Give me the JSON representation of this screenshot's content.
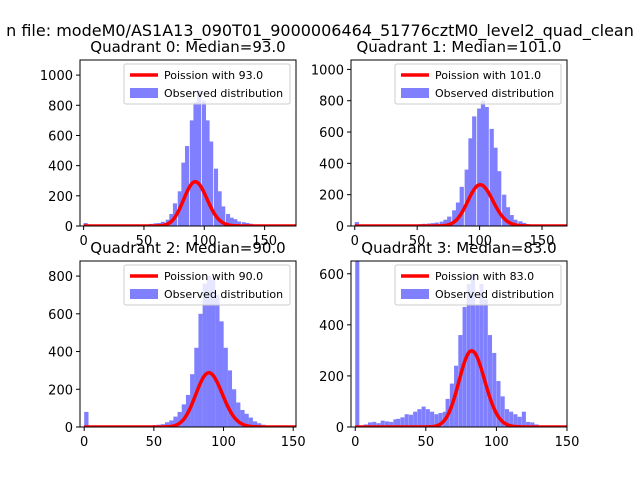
{
  "figure": {
    "suptitle": "n file: modeM0/AS1A13_090T01_9000006464_51776cztM0_level2_quad_clean"
  },
  "colors": {
    "poisson": "#ff0000",
    "observed": "#8080ff",
    "legend_edge": "#cccccc"
  },
  "chart_data": [
    {
      "type": "bar",
      "title": "Quadrant 0: Median=93.0",
      "xlim": [
        -3,
        176
      ],
      "ylim": [
        0,
        1100
      ],
      "xticks": [
        0,
        50,
        100,
        150
      ],
      "yticks": [
        0,
        200,
        400,
        600,
        800,
        1000
      ],
      "legend": [
        "Poission with 93.0",
        "Observed distribution"
      ],
      "legend_position": "top-right",
      "bin_width": 3.4,
      "poisson_mean": 93,
      "observed": [
        [
          0,
          20
        ],
        [
          51,
          8
        ],
        [
          54,
          14
        ],
        [
          58,
          18
        ],
        [
          61,
          20
        ],
        [
          64,
          28
        ],
        [
          68,
          42
        ],
        [
          71,
          80
        ],
        [
          74,
          150
        ],
        [
          78,
          230
        ],
        [
          81,
          420
        ],
        [
          84,
          530
        ],
        [
          88,
          700
        ],
        [
          91,
          820
        ],
        [
          94,
          900
        ],
        [
          98,
          830
        ],
        [
          101,
          700
        ],
        [
          104,
          560
        ],
        [
          108,
          380
        ],
        [
          111,
          230
        ],
        [
          114,
          130
        ],
        [
          118,
          80
        ],
        [
          121,
          55
        ],
        [
          124,
          45
        ],
        [
          127,
          30
        ],
        [
          131,
          25
        ],
        [
          134,
          20
        ],
        [
          137,
          15
        ],
        [
          141,
          8
        ]
      ]
    },
    {
      "type": "bar",
      "title": "Quadrant 1: Median=101.0",
      "xlim": [
        -3,
        170
      ],
      "ylim": [
        0,
        1060
      ],
      "xticks": [
        0,
        50,
        100,
        150
      ],
      "yticks": [
        0,
        200,
        400,
        600,
        800,
        1000
      ],
      "legend": [
        "Poission with 101.0",
        "Observed distribution"
      ],
      "legend_position": "top-right",
      "bin_width": 3.4,
      "poisson_mean": 101,
      "observed": [
        [
          0,
          25
        ],
        [
          44,
          6
        ],
        [
          47,
          10
        ],
        [
          51,
          12
        ],
        [
          54,
          14
        ],
        [
          58,
          16
        ],
        [
          61,
          18
        ],
        [
          64,
          22
        ],
        [
          68,
          28
        ],
        [
          71,
          40
        ],
        [
          74,
          60
        ],
        [
          78,
          100
        ],
        [
          81,
          150
        ],
        [
          84,
          250
        ],
        [
          88,
          360
        ],
        [
          91,
          560
        ],
        [
          94,
          700
        ],
        [
          98,
          750
        ],
        [
          101,
          800
        ],
        [
          104,
          760
        ],
        [
          108,
          620
        ],
        [
          111,
          500
        ],
        [
          114,
          350
        ],
        [
          118,
          200
        ],
        [
          121,
          120
        ],
        [
          124,
          70
        ],
        [
          127,
          40
        ],
        [
          131,
          30
        ],
        [
          134,
          20
        ],
        [
          137,
          12
        ]
      ]
    },
    {
      "type": "bar",
      "title": "Quadrant 2: Median=90.0",
      "xlim": [
        -3,
        152
      ],
      "ylim": [
        0,
        880
      ],
      "xticks": [
        0,
        50,
        100,
        150
      ],
      "yticks": [
        0,
        200,
        400,
        600,
        800
      ],
      "legend": [
        "Poission with 90.0",
        "Observed distribution"
      ],
      "legend_position": "top-right",
      "bin_width": 3.1,
      "poisson_mean": 90,
      "observed": [
        [
          0,
          80
        ],
        [
          46,
          8
        ],
        [
          49,
          10
        ],
        [
          52,
          12
        ],
        [
          55,
          15
        ],
        [
          58,
          25
        ],
        [
          61,
          35
        ],
        [
          64,
          55
        ],
        [
          67,
          80
        ],
        [
          70,
          120
        ],
        [
          73,
          170
        ],
        [
          76,
          280
        ],
        [
          79,
          420
        ],
        [
          82,
          600
        ],
        [
          85,
          760
        ],
        [
          88,
          800
        ],
        [
          91,
          780
        ],
        [
          94,
          700
        ],
        [
          97,
          560
        ],
        [
          100,
          420
        ],
        [
          103,
          300
        ],
        [
          106,
          200
        ],
        [
          109,
          130
        ],
        [
          112,
          90
        ],
        [
          115,
          70
        ],
        [
          118,
          50
        ],
        [
          121,
          30
        ],
        [
          124,
          20
        ],
        [
          127,
          12
        ],
        [
          130,
          6
        ]
      ]
    },
    {
      "type": "bar",
      "title": "Quadrant 3: Median=83.0",
      "xlim": [
        -3,
        150
      ],
      "ylim": [
        0,
        650
      ],
      "xticks": [
        0,
        50,
        100,
        150
      ],
      "yticks": [
        0,
        200,
        400,
        600
      ],
      "legend": [
        "Poission with 83.0",
        "Observed distribution"
      ],
      "legend_position": "top-right",
      "bin_width": 2.9,
      "poisson_mean": 83,
      "observed": [
        [
          0,
          650
        ],
        [
          6,
          10
        ],
        [
          9,
          18
        ],
        [
          12,
          20
        ],
        [
          15,
          15
        ],
        [
          18,
          25
        ],
        [
          21,
          22
        ],
        [
          24,
          20
        ],
        [
          27,
          30
        ],
        [
          29,
          32
        ],
        [
          32,
          38
        ],
        [
          35,
          50
        ],
        [
          38,
          48
        ],
        [
          41,
          60
        ],
        [
          44,
          70
        ],
        [
          47,
          80
        ],
        [
          50,
          70
        ],
        [
          53,
          60
        ],
        [
          56,
          50
        ],
        [
          59,
          55
        ],
        [
          62,
          60
        ],
        [
          64,
          110
        ],
        [
          67,
          170
        ],
        [
          70,
          240
        ],
        [
          73,
          360
        ],
        [
          76,
          470
        ],
        [
          79,
          560
        ],
        [
          82,
          600
        ],
        [
          85,
          480
        ],
        [
          88,
          560
        ],
        [
          91,
          500
        ],
        [
          94,
          360
        ],
        [
          97,
          290
        ],
        [
          100,
          180
        ],
        [
          103,
          120
        ],
        [
          106,
          70
        ],
        [
          109,
          60
        ],
        [
          112,
          50
        ],
        [
          115,
          40
        ],
        [
          118,
          60
        ],
        [
          121,
          20
        ],
        [
          124,
          18
        ],
        [
          127,
          10
        ],
        [
          130,
          6
        ]
      ]
    }
  ]
}
